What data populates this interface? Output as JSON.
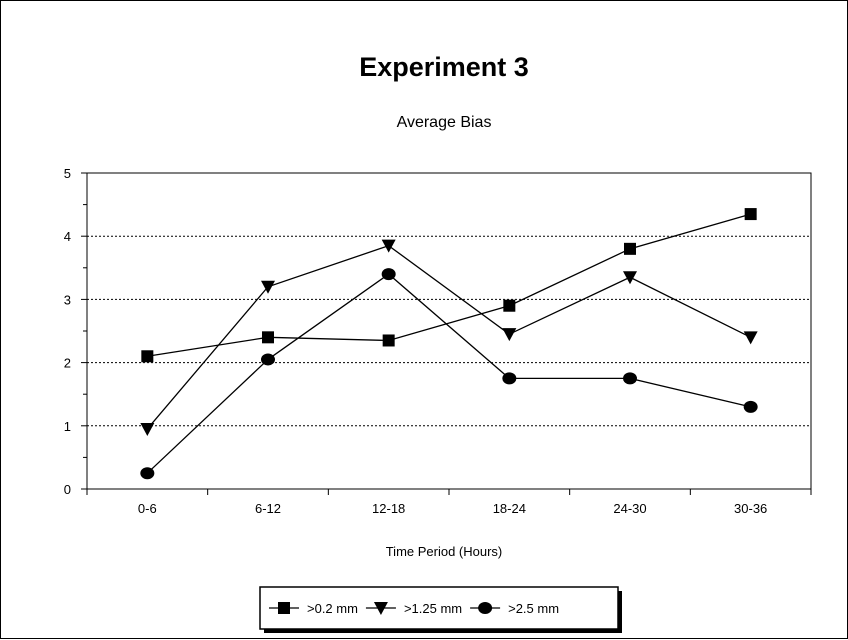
{
  "chart_data": {
    "type": "line",
    "title": "Experiment 3",
    "subtitle": "Average Bias",
    "xlabel": "Time Period (Hours)",
    "ylabel": "",
    "categories": [
      "0-6",
      "6-12",
      "12-18",
      "18-24",
      "24-30",
      "30-36"
    ],
    "ylim": [
      0,
      5
    ],
    "yticks": [
      "0",
      "1",
      "2",
      "3",
      "4",
      "5"
    ],
    "grid": "horizontal dotted",
    "legend_position": "bottom",
    "series": [
      {
        "name": ">0.2 mm",
        "marker": "square",
        "values": [
          2.1,
          2.4,
          2.35,
          2.9,
          3.8,
          4.35
        ]
      },
      {
        "name": ">1.25 mm",
        "marker": "triangle-down",
        "values": [
          0.95,
          3.2,
          3.85,
          2.45,
          3.35,
          2.4
        ]
      },
      {
        "name": ">2.5 mm",
        "marker": "circle",
        "values": [
          0.25,
          2.05,
          3.4,
          1.75,
          1.75,
          1.3
        ]
      }
    ]
  }
}
